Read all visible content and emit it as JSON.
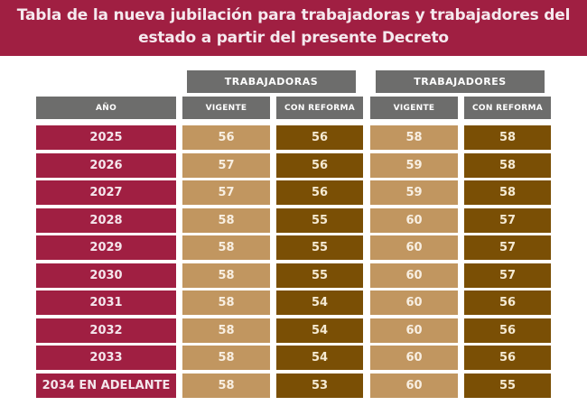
{
  "title_lines": [
    "Tabla de la nueva jubilación para trabajadoras y trabajadores del",
    "estado a partir del presente Decreto"
  ],
  "groups": [
    "TRABAJADORAS",
    "TRABAJADORES"
  ],
  "headers": [
    "AÑO",
    "VIGENTE",
    "CON REFORMA",
    "VIGENTE",
    "CON REFORMA"
  ],
  "colors": {
    "banner": "#a01f42",
    "header": "#6d6d6c",
    "year": "#a01f42",
    "vigente": "#c19660",
    "con_reforma": "#7a4f05"
  },
  "rows": [
    {
      "year": "2025",
      "v": [
        "56",
        "56",
        "58",
        "58"
      ]
    },
    {
      "year": "2026",
      "v": [
        "57",
        "56",
        "59",
        "58"
      ]
    },
    {
      "year": "2027",
      "v": [
        "57",
        "56",
        "59",
        "58"
      ]
    },
    {
      "year": "2028",
      "v": [
        "58",
        "55",
        "60",
        "57"
      ]
    },
    {
      "year": "2029",
      "v": [
        "58",
        "55",
        "60",
        "57"
      ]
    },
    {
      "year": "2030",
      "v": [
        "58",
        "55",
        "60",
        "57"
      ]
    },
    {
      "year": "2031",
      "v": [
        "58",
        "54",
        "60",
        "56"
      ]
    },
    {
      "year": "2032",
      "v": [
        "58",
        "54",
        "60",
        "56"
      ]
    },
    {
      "year": "2033",
      "v": [
        "58",
        "54",
        "60",
        "56"
      ]
    },
    {
      "year": "2034 EN ADELANTE",
      "v": [
        "58",
        "53",
        "60",
        "55"
      ]
    }
  ]
}
